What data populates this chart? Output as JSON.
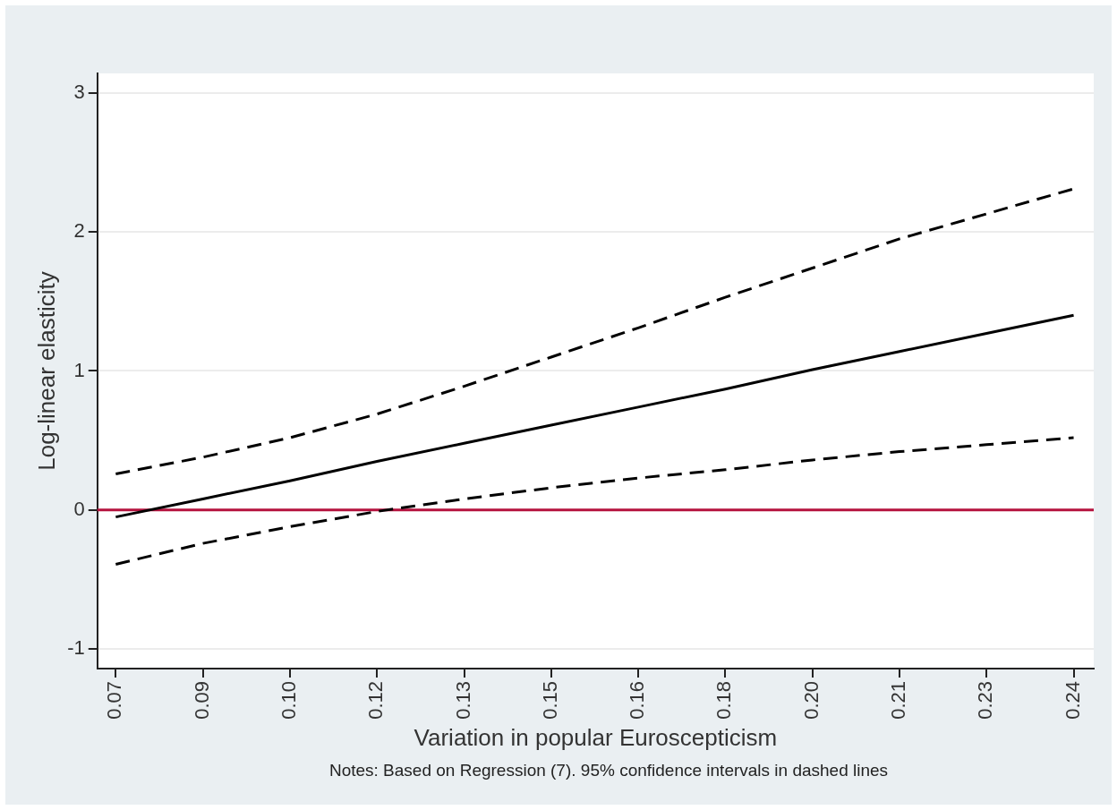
{
  "chart_data": {
    "type": "line",
    "xlabel": "Variation in popular Euroscepticism",
    "ylabel": "Log-linear elasticity",
    "annotations": [
      "Notes: Based on Regression (7). 95% confidence intervals in dashed lines"
    ],
    "xlim": [
      0.0672,
      0.2457
    ],
    "xticks": [
      {
        "value": 0.0705,
        "label": "0.07"
      },
      {
        "value": 0.0861,
        "label": "0.09"
      },
      {
        "value": 0.1017,
        "label": "0.10"
      },
      {
        "value": 0.1173,
        "label": "0.12"
      },
      {
        "value": 0.1329,
        "label": "0.13"
      },
      {
        "value": 0.1485,
        "label": "0.15"
      },
      {
        "value": 0.1641,
        "label": "0.16"
      },
      {
        "value": 0.1797,
        "label": "0.18"
      },
      {
        "value": 0.1953,
        "label": "0.20"
      },
      {
        "value": 0.2109,
        "label": "0.21"
      },
      {
        "value": 0.2265,
        "label": "0.23"
      },
      {
        "value": 0.2421,
        "label": "0.24"
      }
    ],
    "ylim": [
      -1.14,
      3.14
    ],
    "yticks": [
      -1,
      0,
      1,
      2,
      3
    ],
    "grid": "y",
    "marker": "none",
    "x": [
      0.0705,
      0.0861,
      0.1017,
      0.1173,
      0.1329,
      0.1485,
      0.1641,
      0.1797,
      0.1953,
      0.2109,
      0.2265,
      0.2421
    ],
    "series": [
      {
        "color": "#000000",
        "line_style": "solid",
        "values": [
          -0.05,
          0.08,
          0.21,
          0.35,
          0.48,
          0.61,
          0.74,
          0.87,
          1.01,
          1.14,
          1.27,
          1.4
        ]
      },
      {
        "color": "#000000",
        "line_style": "dashed",
        "values": [
          0.26,
          0.38,
          0.52,
          0.69,
          0.89,
          1.1,
          1.31,
          1.53,
          1.74,
          1.95,
          2.13,
          2.31
        ]
      },
      {
        "color": "#000000",
        "line_style": "dashed",
        "values": [
          -0.39,
          -0.24,
          -0.12,
          -0.01,
          0.08,
          0.16,
          0.23,
          0.29,
          0.36,
          0.42,
          0.47,
          0.52
        ]
      }
    ],
    "ref_lines": [
      {
        "axis": "y",
        "value": 0,
        "color": "#b5123e"
      }
    ]
  }
}
